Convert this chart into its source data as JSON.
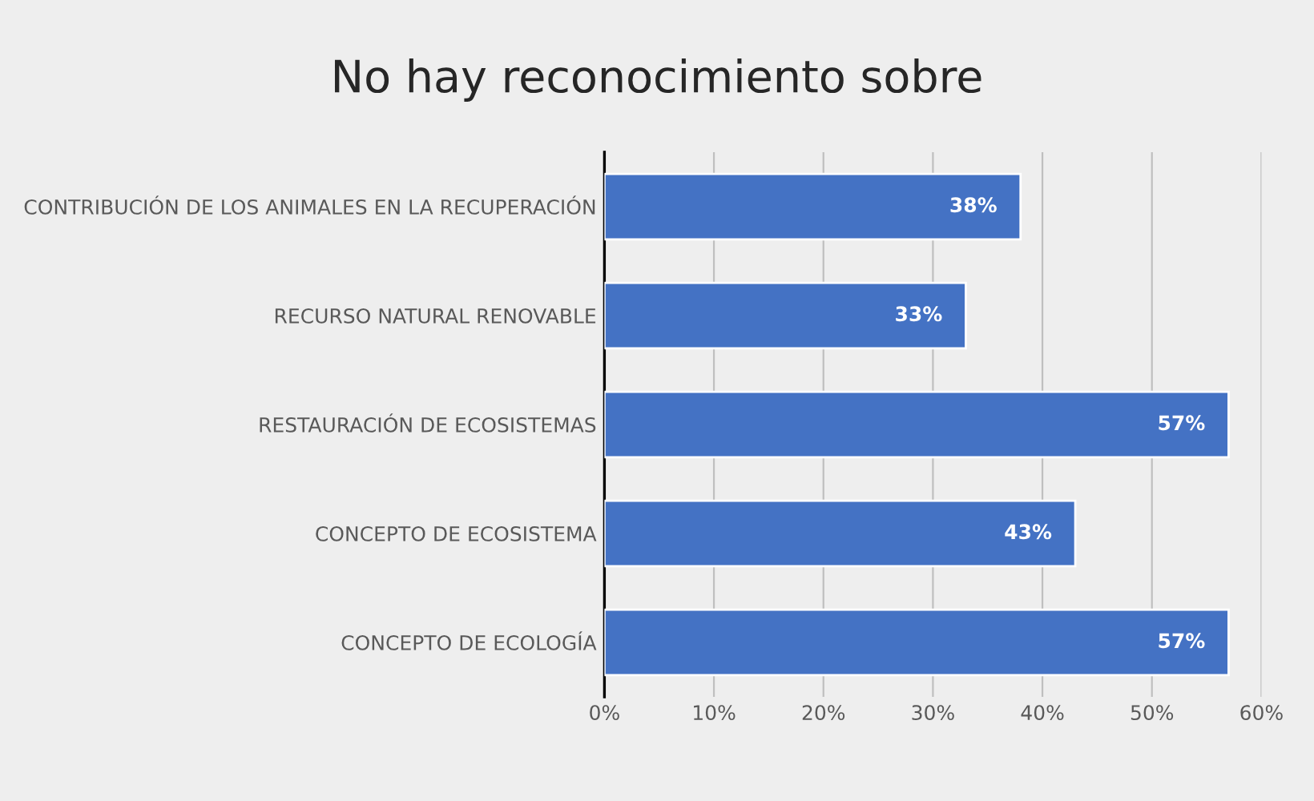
{
  "chart_data": {
    "type": "bar",
    "orientation": "horizontal",
    "title": "No hay reconocimiento sobre",
    "categories": [
      "CONTRIBUCIÓN DE LOS ANIMALES EN LA RECUPERACIÓN",
      "RECURSO NATURAL RENOVABLE",
      "RESTAURACIÓN DE ECOSISTEMAS",
      "CONCEPTO DE ECOSISTEMA",
      "CONCEPTO DE ECOLOGÍA"
    ],
    "values": [
      38,
      33,
      57,
      43,
      57
    ],
    "value_labels": [
      "38%",
      "33%",
      "57%",
      "43%",
      "57%"
    ],
    "color": "#4472c4",
    "xlim": [
      0,
      60
    ],
    "xticks": [
      {
        "value": 0,
        "label": "0%"
      },
      {
        "value": 10,
        "label": "10%"
      },
      {
        "value": 20,
        "label": "20%"
      },
      {
        "value": 30,
        "label": "30%"
      },
      {
        "value": 40,
        "label": "40%"
      },
      {
        "value": 50,
        "label": "50%"
      },
      {
        "value": 60,
        "label": "60%"
      }
    ],
    "grid": "x"
  }
}
